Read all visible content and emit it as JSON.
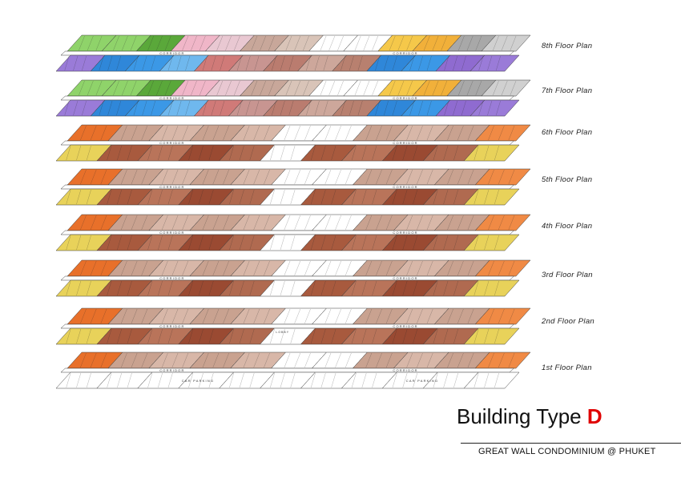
{
  "floors": [
    {
      "label": "8th Floor Plan",
      "scheme": "upper"
    },
    {
      "label": "7th Floor Plan",
      "scheme": "upper"
    },
    {
      "label": "6th Floor Plan",
      "scheme": "typical"
    },
    {
      "label": "5th Floor Plan",
      "scheme": "typical"
    },
    {
      "label": "4th Floor Plan",
      "scheme": "typical"
    },
    {
      "label": "3rd Floor Plan",
      "scheme": "typical"
    },
    {
      "label": "2nd Floor Plan",
      "scheme": "second"
    },
    {
      "label": "1st Floor Plan",
      "scheme": "ground"
    }
  ],
  "corridor_label": "CORRIDOR",
  "lobby_label": "LOBBY",
  "parking_label": "CAR PARKING",
  "title": {
    "text": "Building Type ",
    "letter": "D"
  },
  "subtitle": "GREAT WALL CONDOMINIUM @ PHUKET",
  "colors": {
    "upper_top": [
      "#8fd36a",
      "#8fd36a",
      "#5aa83a",
      "#f0b6c8",
      "#e9c8d2",
      "#c8a79a",
      "#d9c4b8",
      "#ffffff",
      "#ffffff",
      "#f5c84a",
      "#f1b03a",
      "#a8a8a8",
      "#d0d0d0"
    ],
    "upper_bottom": [
      "#9a7bd8",
      "#2f87d9",
      "#3b98e6",
      "#6fb8ee",
      "#d07a78",
      "#c89591",
      "#ba7c6f",
      "#cda79b",
      "#b8806f",
      "#2f87d9",
      "#3b98e6",
      "#8f6bd0",
      "#9a7bd8"
    ],
    "typical_top": [
      "#e8702a",
      "#c9a290",
      "#d8b7a8",
      "#c9a290",
      "#d8b7a8",
      "#ffffff",
      "#ffffff",
      "#c9a290",
      "#d8b7a8",
      "#c9a290",
      "#f08a45"
    ],
    "typical_bottom": [
      "#e8d25a",
      "#a85a3e",
      "#b9745a",
      "#9a4a32",
      "#b06a50",
      "#ffffff",
      "#a85a3e",
      "#b9745a",
      "#9a4a32",
      "#b06a50",
      "#e8d25a"
    ],
    "line": "#3a3a3a",
    "title_accent": "#e00000"
  }
}
